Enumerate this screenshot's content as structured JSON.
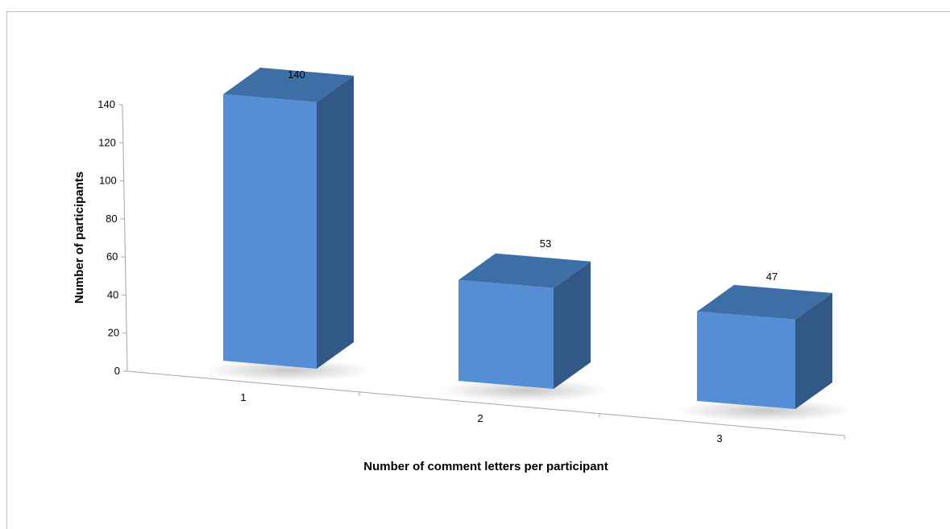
{
  "chart_data": {
    "type": "bar",
    "style": "3d-column",
    "categories": [
      "1",
      "2",
      "3"
    ],
    "values": [
      140,
      53,
      47
    ],
    "data_labels": [
      "140",
      "53",
      "47"
    ],
    "title": "",
    "xlabel": "Number of comment letters per participant",
    "ylabel": "Number of participants",
    "ylim": [
      0,
      140
    ],
    "yticks": [
      "0",
      "20",
      "40",
      "60",
      "80",
      "100",
      "120",
      "140"
    ],
    "grid": false,
    "legend": "none",
    "colors": {
      "bar_front": "#558ed5",
      "bar_side": "#325885",
      "bar_top": "#3e6ea6",
      "axis": "#a6a6a6"
    }
  }
}
